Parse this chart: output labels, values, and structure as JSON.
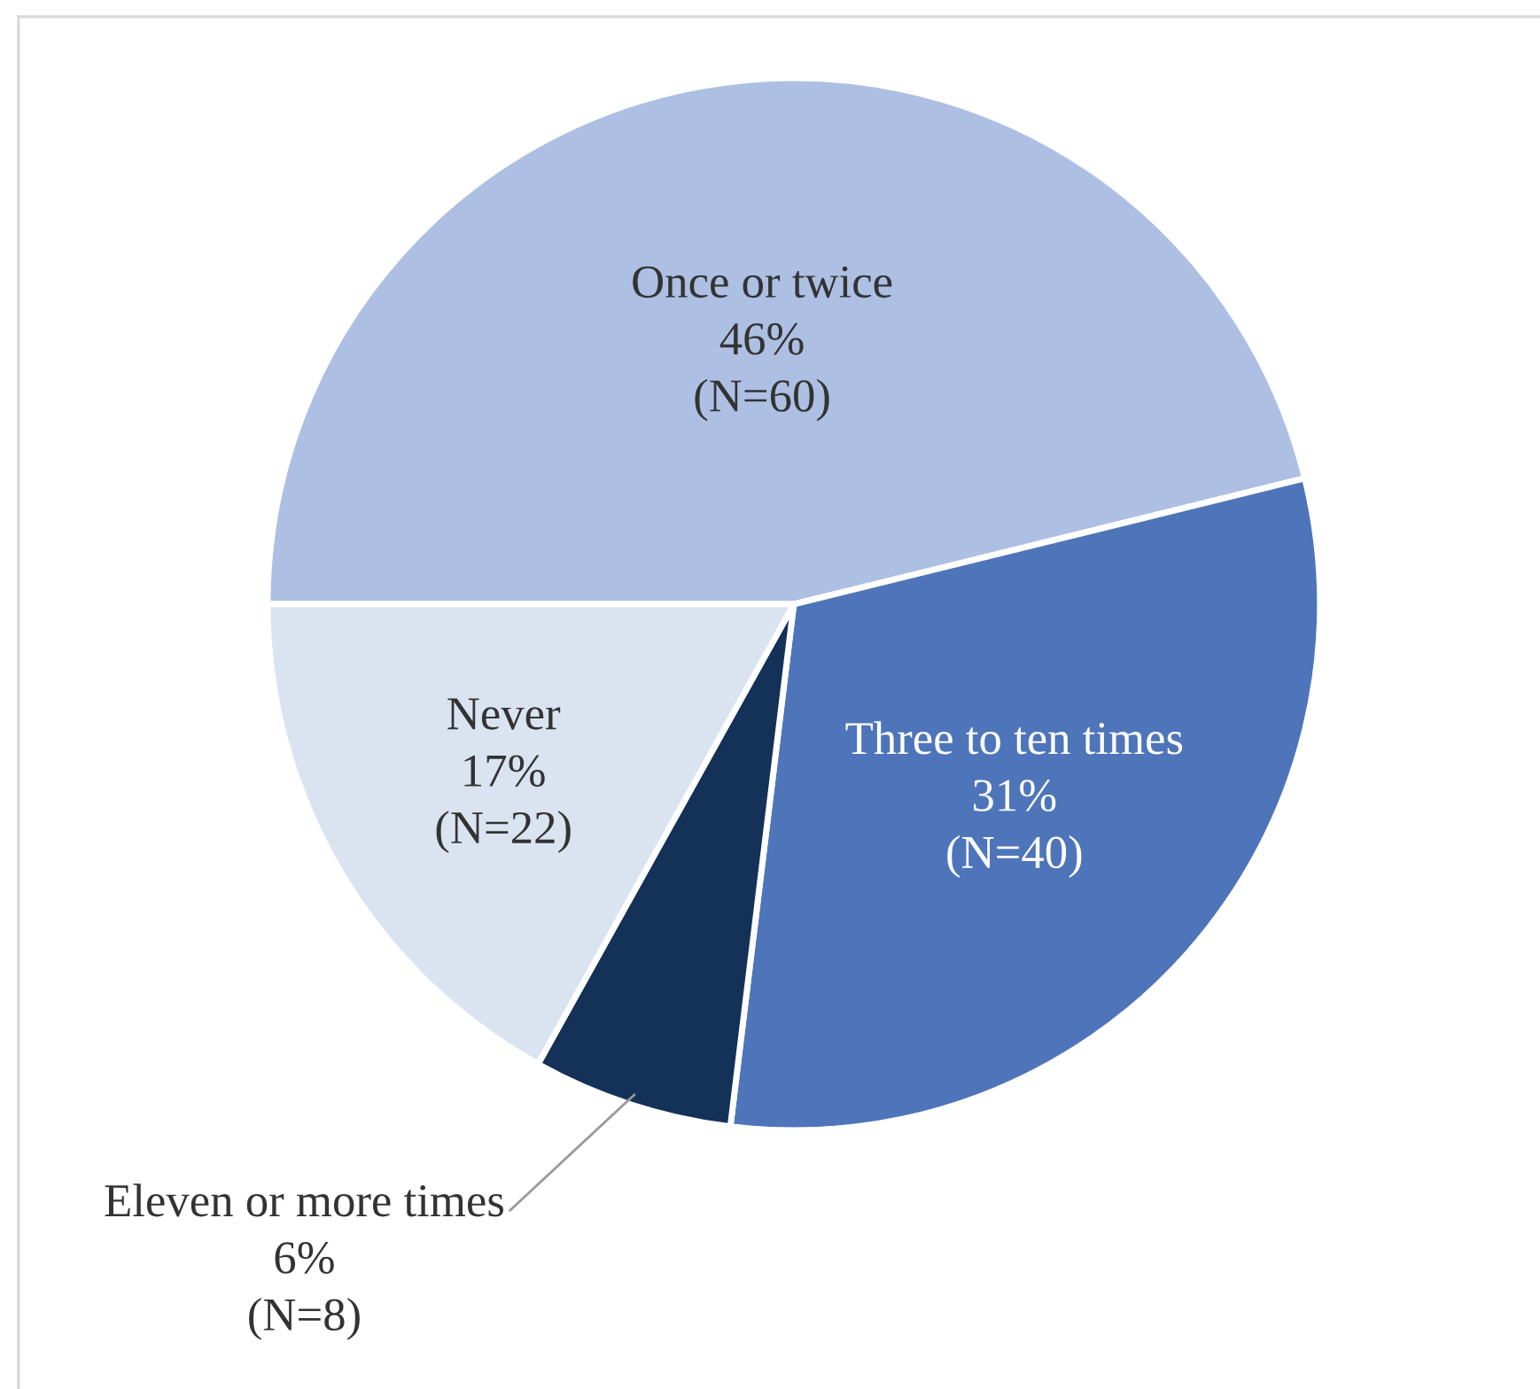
{
  "chart_data": {
    "type": "pie",
    "categories": [
      "Once or twice",
      "Three to ten times",
      "Eleven or more times",
      "Never"
    ],
    "values": [
      60,
      40,
      8,
      22
    ],
    "value_labels": [
      "46%\n(N=60)",
      "31%\n(N=40)",
      "6%\n(N=8)",
      "17%\n(N=22)"
    ],
    "colors": [
      "#adc0e3",
      "#4e75b9",
      "#143158",
      "#dae4f1"
    ]
  }
}
